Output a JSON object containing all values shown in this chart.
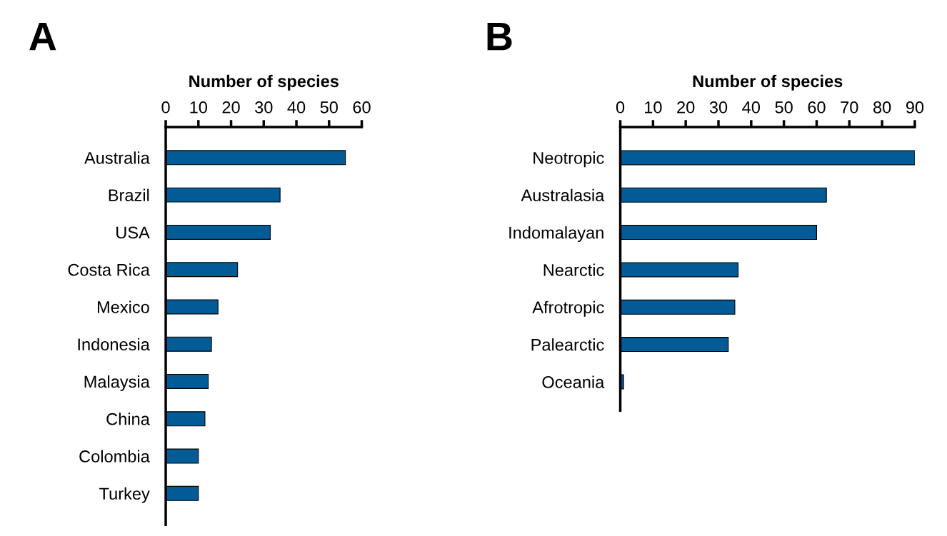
{
  "chart_data": [
    {
      "type": "bar",
      "orientation": "horizontal",
      "xlabel": "Number of species",
      "annotations": [
        "A"
      ],
      "color": "#005b96",
      "categories": [
        "Australia",
        "Brazil",
        "USA",
        "Costa Rica",
        "Mexico",
        "Indonesia",
        "Malaysia",
        "China",
        "Colombia",
        "Turkey"
      ],
      "values": [
        55,
        35,
        32,
        22,
        16,
        14,
        13,
        12,
        10,
        10
      ],
      "xlim": [
        0,
        60
      ],
      "xticks": [
        0,
        10,
        20,
        30,
        40,
        50,
        60
      ],
      "grid": false,
      "legend": false
    },
    {
      "type": "bar",
      "orientation": "horizontal",
      "xlabel": "Number of species",
      "annotations": [
        "B"
      ],
      "color": "#005b96",
      "categories": [
        "Neotropic",
        "Australasia",
        "Indomalayan",
        "Nearctic",
        "Afrotropic",
        "Palearctic",
        "Oceania"
      ],
      "values": [
        90,
        63,
        60,
        36,
        35,
        33,
        1
      ],
      "xlim": [
        0,
        90
      ],
      "xticks": [
        0,
        10,
        20,
        30,
        40,
        50,
        60,
        70,
        80,
        90
      ],
      "grid": false,
      "legend": false
    }
  ]
}
